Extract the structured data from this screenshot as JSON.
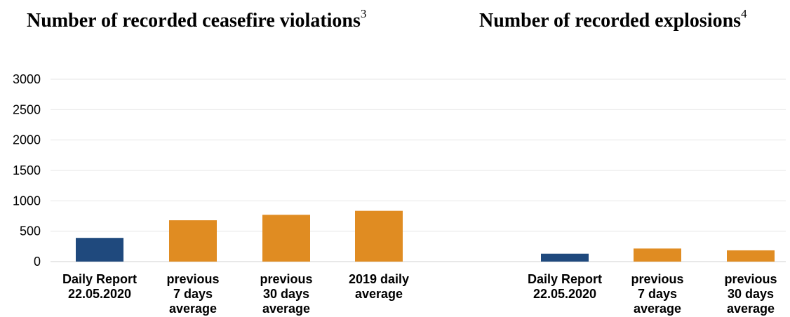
{
  "chart_data": [
    {
      "type": "bar",
      "title": "Number of recorded ceasefire violations",
      "title_superscript": "3",
      "categories": [
        [
          "Daily Report",
          "22.05.2020"
        ],
        [
          "previous",
          "7 days",
          "average"
        ],
        [
          "previous",
          "30 days",
          "average"
        ],
        [
          "2019 daily",
          "average"
        ]
      ],
      "values": [
        390,
        680,
        770,
        835
      ],
      "colors": [
        "#1f497d",
        "#e08c22",
        "#e08c22",
        "#e08c22"
      ],
      "ylim": [
        0,
        3000
      ],
      "yticks": [
        "0",
        "500",
        "1000",
        "1500",
        "2000",
        "2500",
        "3000"
      ],
      "grid": true,
      "xlabel": "",
      "ylabel": ""
    },
    {
      "type": "bar",
      "title": "Number of recorded explosions",
      "title_superscript": "4",
      "categories": [
        [
          "Daily Report",
          "22.05.2020"
        ],
        [
          "previous",
          "7 days",
          "average"
        ],
        [
          "previous",
          "30 days",
          "average"
        ]
      ],
      "values": [
        130,
        215,
        185
      ],
      "colors": [
        "#1f497d",
        "#e08c22",
        "#e08c22"
      ],
      "ylim": [
        0,
        3000
      ],
      "grid": true,
      "xlabel": "",
      "ylabel": ""
    }
  ]
}
